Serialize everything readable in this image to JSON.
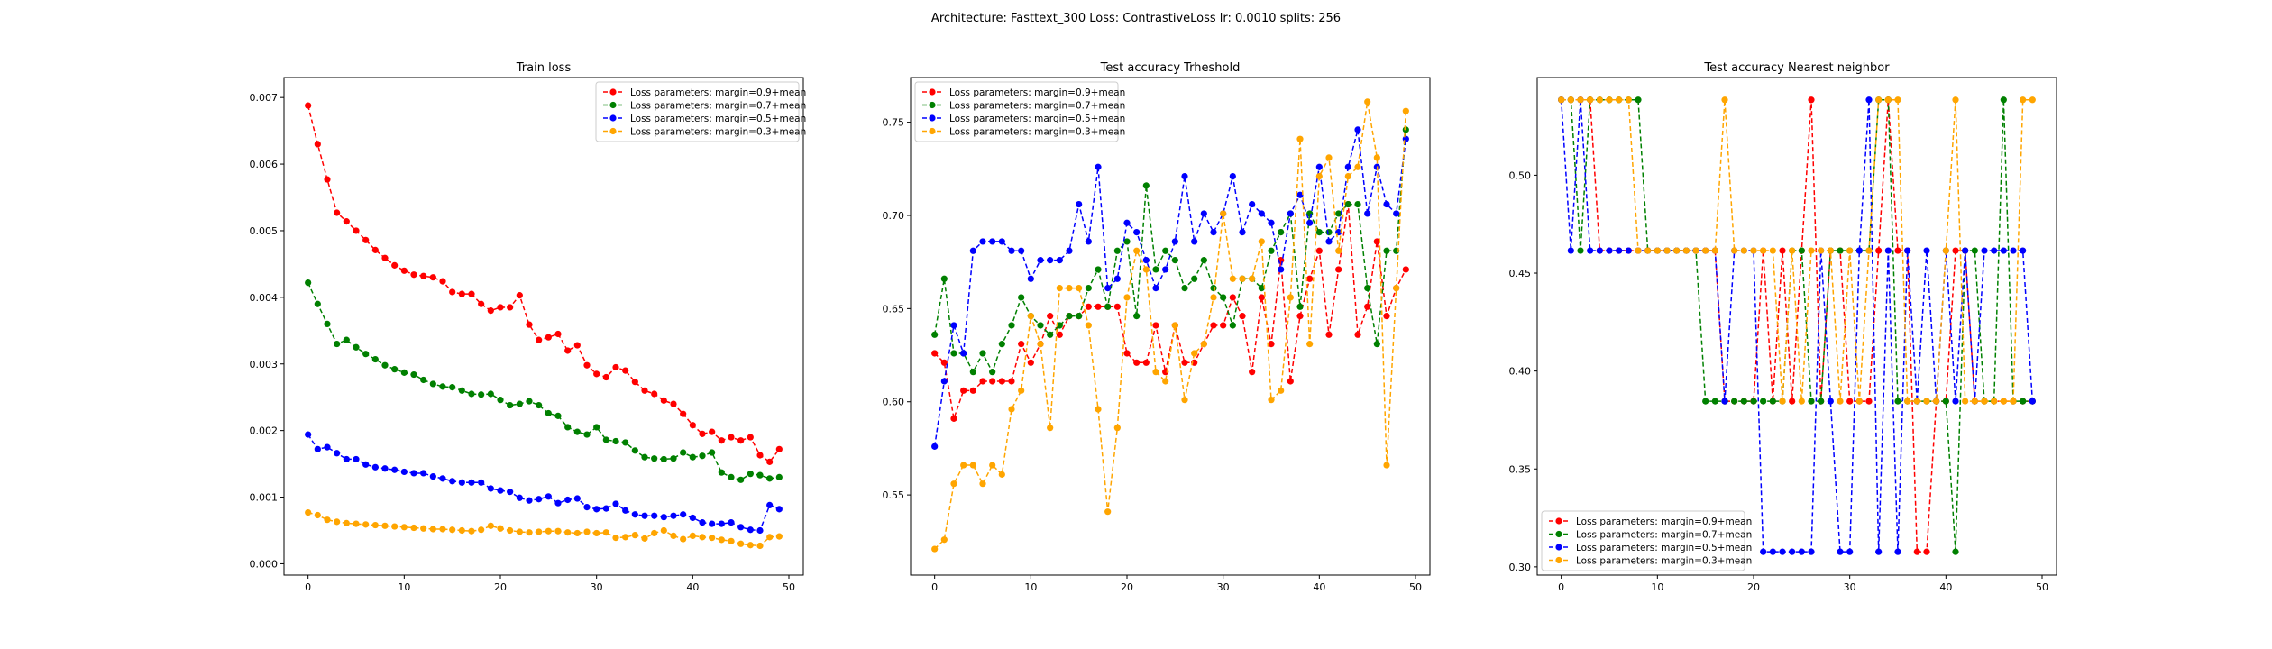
{
  "suptitle": "Architecture: Fasttext_300 Loss: ContrastiveLoss lr: 0.0010 splits: 256",
  "series_colors": [
    "#ff0000",
    "#008000",
    "#0000ff",
    "#ffa500"
  ],
  "chart_data": [
    {
      "type": "line",
      "title": "Train loss",
      "xlabel": "",
      "ylabel": "",
      "xlim": [
        -2.5,
        51.5
      ],
      "ylim": [
        -0.00017,
        0.0073
      ],
      "xticks": [
        0,
        10,
        20,
        30,
        40,
        50
      ],
      "xtick_labels": [
        "0",
        "10",
        "20",
        "30",
        "40",
        "50"
      ],
      "yticks": [
        0.0,
        0.001,
        0.002,
        0.003,
        0.004,
        0.005,
        0.006,
        0.007
      ],
      "ytick_labels": [
        "0.000",
        "0.001",
        "0.002",
        "0.003",
        "0.004",
        "0.005",
        "0.006",
        "0.007"
      ],
      "grid": false,
      "legend_position": "top-right",
      "x": [
        0,
        1,
        2,
        3,
        4,
        5,
        6,
        7,
        8,
        9,
        10,
        11,
        12,
        13,
        14,
        15,
        16,
        17,
        18,
        19,
        20,
        21,
        22,
        23,
        24,
        25,
        26,
        27,
        28,
        29,
        30,
        31,
        32,
        33,
        34,
        35,
        36,
        37,
        38,
        39,
        40,
        41,
        42,
        43,
        44,
        45,
        46,
        47,
        48,
        49
      ],
      "series": [
        {
          "name": "Loss parameters: margin=0.9+mean",
          "values": [
            0.00688,
            0.0063,
            0.00577,
            0.00527,
            0.00514,
            0.005,
            0.00486,
            0.00471,
            0.00459,
            0.00448,
            0.0044,
            0.00434,
            0.00432,
            0.0043,
            0.00424,
            0.00408,
            0.00405,
            0.00405,
            0.0039,
            0.0038,
            0.00385,
            0.00385,
            0.00403,
            0.00359,
            0.00336,
            0.0034,
            0.00345,
            0.0032,
            0.00328,
            0.00298,
            0.00285,
            0.0028,
            0.00295,
            0.0029,
            0.00273,
            0.0026,
            0.00255,
            0.00245,
            0.0024,
            0.00225,
            0.00208,
            0.00195,
            0.00198,
            0.00185,
            0.0019,
            0.00185,
            0.0019,
            0.00163,
            0.00153,
            0.00172
          ]
        },
        {
          "name": "Loss parameters: margin=0.7+mean",
          "values": [
            0.00422,
            0.0039,
            0.0036,
            0.0033,
            0.00336,
            0.00325,
            0.00315,
            0.00307,
            0.00298,
            0.00292,
            0.00287,
            0.00284,
            0.00276,
            0.0027,
            0.00266,
            0.00265,
            0.0026,
            0.00255,
            0.00254,
            0.00255,
            0.00246,
            0.00238,
            0.0024,
            0.00244,
            0.00238,
            0.00226,
            0.00222,
            0.00205,
            0.00198,
            0.00194,
            0.00205,
            0.00186,
            0.00184,
            0.00182,
            0.0017,
            0.0016,
            0.00158,
            0.00157,
            0.00158,
            0.00167,
            0.0016,
            0.00162,
            0.00167,
            0.00137,
            0.0013,
            0.00126,
            0.00135,
            0.00133,
            0.00128,
            0.0013
          ]
        },
        {
          "name": "Loss parameters: margin=0.5+mean",
          "values": [
            0.00194,
            0.00172,
            0.00175,
            0.00166,
            0.00157,
            0.00157,
            0.00149,
            0.00145,
            0.00143,
            0.00141,
            0.00138,
            0.00136,
            0.00136,
            0.00131,
            0.00128,
            0.00124,
            0.00122,
            0.00122,
            0.00122,
            0.00113,
            0.0011,
            0.00108,
            0.00099,
            0.00095,
            0.00097,
            0.00101,
            0.00091,
            0.00096,
            0.00098,
            0.00085,
            0.00082,
            0.00083,
            0.0009,
            0.0008,
            0.00074,
            0.00072,
            0.00072,
            0.0007,
            0.00072,
            0.00074,
            0.00069,
            0.00062,
            0.0006,
            0.0006,
            0.00062,
            0.00055,
            0.00051,
            0.0005,
            0.00088,
            0.00082
          ]
        },
        {
          "name": "Loss parameters: margin=0.3+mean",
          "values": [
            0.00077,
            0.00073,
            0.00066,
            0.00063,
            0.00061,
            0.0006,
            0.00059,
            0.00058,
            0.00057,
            0.00056,
            0.00055,
            0.00054,
            0.00053,
            0.00052,
            0.00052,
            0.00051,
            0.0005,
            0.00049,
            0.00051,
            0.00057,
            0.00053,
            0.0005,
            0.00048,
            0.00047,
            0.00048,
            0.00049,
            0.00049,
            0.00047,
            0.00046,
            0.00048,
            0.00046,
            0.00047,
            0.00039,
            0.0004,
            0.00043,
            0.00038,
            0.00046,
            0.0005,
            0.00042,
            0.00037,
            0.00042,
            0.0004,
            0.00039,
            0.00036,
            0.00034,
            0.0003,
            0.00028,
            0.00027,
            0.0004,
            0.00041
          ]
        }
      ]
    },
    {
      "type": "line",
      "title": "Test accuracy Trheshold",
      "xlabel": "",
      "ylabel": "",
      "xlim": [
        -2.5,
        51.5
      ],
      "ylim": [
        0.507,
        0.774
      ],
      "xticks": [
        0,
        10,
        20,
        30,
        40,
        50
      ],
      "xtick_labels": [
        "0",
        "10",
        "20",
        "30",
        "40",
        "50"
      ],
      "yticks": [
        0.55,
        0.6,
        0.65,
        0.7,
        0.75
      ],
      "ytick_labels": [
        "0.55",
        "0.60",
        "0.65",
        "0.70",
        "0.75"
      ],
      "grid": false,
      "legend_position": "top-left",
      "x": [
        0,
        1,
        2,
        3,
        4,
        5,
        6,
        7,
        8,
        9,
        10,
        11,
        12,
        13,
        14,
        15,
        16,
        17,
        18,
        19,
        20,
        21,
        22,
        23,
        24,
        25,
        26,
        27,
        28,
        29,
        30,
        31,
        32,
        33,
        34,
        35,
        36,
        37,
        38,
        39,
        40,
        41,
        42,
        43,
        44,
        45,
        46,
        47,
        48,
        49
      ],
      "series": [
        {
          "name": "Loss parameters: margin=0.9+mean",
          "values": [
            0.626,
            0.621,
            0.591,
            0.606,
            0.606,
            0.611,
            0.611,
            0.611,
            0.611,
            0.631,
            0.621,
            0.631,
            0.646,
            0.636,
            0.646,
            0.646,
            0.651,
            0.651,
            0.651,
            0.651,
            0.626,
            0.621,
            0.621,
            0.641,
            0.616,
            0.641,
            0.621,
            0.621,
            0.631,
            0.641,
            0.641,
            0.656,
            0.646,
            0.616,
            0.656,
            0.631,
            0.676,
            0.611,
            0.646,
            0.666,
            0.681,
            0.636,
            0.671,
            0.706,
            0.636,
            0.651,
            0.686,
            0.646,
            0.661,
            0.671
          ]
        },
        {
          "name": "Loss parameters: margin=0.7+mean",
          "values": [
            0.636,
            0.666,
            0.626,
            0.626,
            0.616,
            0.626,
            0.616,
            0.631,
            0.641,
            0.656,
            0.646,
            0.641,
            0.636,
            0.641,
            0.646,
            0.646,
            0.661,
            0.671,
            0.651,
            0.681,
            0.686,
            0.646,
            0.716,
            0.671,
            0.681,
            0.676,
            0.661,
            0.666,
            0.676,
            0.661,
            0.656,
            0.641,
            0.666,
            0.666,
            0.661,
            0.681,
            0.691,
            0.701,
            0.651,
            0.701,
            0.691,
            0.691,
            0.701,
            0.706,
            0.706,
            0.661,
            0.631,
            0.681,
            0.681,
            0.746
          ]
        },
        {
          "name": "Loss parameters: margin=0.5+mean",
          "values": [
            0.576,
            0.611,
            0.641,
            0.626,
            0.681,
            0.686,
            0.686,
            0.686,
            0.681,
            0.681,
            0.666,
            0.676,
            0.676,
            0.676,
            0.681,
            0.706,
            0.686,
            0.726,
            0.661,
            0.666,
            0.696,
            0.691,
            0.676,
            0.661,
            0.671,
            0.686,
            0.721,
            0.686,
            0.701,
            0.691,
            0.701,
            0.721,
            0.691,
            0.706,
            0.701,
            0.696,
            0.671,
            0.701,
            0.711,
            0.696,
            0.726,
            0.686,
            0.691,
            0.726,
            0.746,
            0.701,
            0.726,
            0.706,
            0.701,
            0.741
          ]
        },
        {
          "name": "Loss parameters: margin=0.3+mean",
          "values": [
            0.521,
            0.526,
            0.556,
            0.566,
            0.566,
            0.556,
            0.566,
            0.561,
            0.596,
            0.606,
            0.646,
            0.631,
            0.586,
            0.661,
            0.661,
            0.661,
            0.641,
            0.596,
            0.541,
            0.586,
            0.656,
            0.681,
            0.671,
            0.616,
            0.611,
            0.641,
            0.601,
            0.626,
            0.631,
            0.656,
            0.701,
            0.666,
            0.666,
            0.666,
            0.686,
            0.601,
            0.606,
            0.656,
            0.741,
            0.631,
            0.721,
            0.731,
            0.681,
            0.721,
            0.726,
            0.761,
            0.731,
            0.566,
            0.661,
            0.756
          ]
        }
      ]
    },
    {
      "type": "line",
      "title": "Test accuracy Nearest neighbor",
      "xlabel": "",
      "ylabel": "",
      "xlim": [
        -2.5,
        51.5
      ],
      "ylim": [
        0.2958,
        0.5499
      ],
      "xticks": [
        0,
        10,
        20,
        30,
        40,
        50
      ],
      "xtick_labels": [
        "0",
        "10",
        "20",
        "30",
        "40",
        "50"
      ],
      "yticks": [
        0.3,
        0.35,
        0.4,
        0.45,
        0.5
      ],
      "ytick_labels": [
        "0.30",
        "0.35",
        "0.40",
        "0.45",
        "0.50"
      ],
      "grid": false,
      "legend_position": "bottom-left",
      "x": [
        0,
        1,
        2,
        3,
        4,
        5,
        6,
        7,
        8,
        9,
        10,
        11,
        12,
        13,
        14,
        15,
        16,
        17,
        18,
        19,
        20,
        21,
        22,
        23,
        24,
        25,
        26,
        27,
        28,
        29,
        30,
        31,
        32,
        33,
        34,
        35,
        36,
        37,
        38,
        39,
        40,
        41,
        42,
        43,
        44,
        45,
        46,
        47,
        48,
        49
      ],
      "series": [
        {
          "name": "Loss parameters: margin=0.9+mean",
          "values": [
            0.5385,
            0.5385,
            0.5385,
            0.5385,
            0.4615,
            0.4615,
            0.4615,
            0.4615,
            0.4615,
            0.4615,
            0.4615,
            0.4615,
            0.4615,
            0.4615,
            0.4615,
            0.4615,
            0.4615,
            0.3846,
            0.3846,
            0.3846,
            0.3846,
            0.4615,
            0.3846,
            0.4615,
            0.3846,
            0.4615,
            0.5385,
            0.3846,
            0.4615,
            0.4615,
            0.3846,
            0.3846,
            0.3846,
            0.4615,
            0.5385,
            0.4615,
            0.4615,
            0.3077,
            0.3077,
            0.3846,
            0.3846,
            0.4615,
            0.4615,
            0.3846,
            0.3846,
            0.3846,
            0.3846,
            0.3846,
            0.3846,
            0.3846
          ]
        },
        {
          "name": "Loss parameters: margin=0.7+mean",
          "values": [
            0.5385,
            0.5385,
            0.4615,
            0.5385,
            0.5385,
            0.5385,
            0.5385,
            0.5385,
            0.5385,
            0.4615,
            0.4615,
            0.4615,
            0.4615,
            0.4615,
            0.4615,
            0.3846,
            0.3846,
            0.3846,
            0.3846,
            0.3846,
            0.3846,
            0.3846,
            0.3846,
            0.3846,
            0.4615,
            0.4615,
            0.3846,
            0.3846,
            0.4615,
            0.4615,
            0.4615,
            0.4615,
            0.4615,
            0.5385,
            0.5385,
            0.3846,
            0.3846,
            0.3846,
            0.3846,
            0.3846,
            0.3846,
            0.3077,
            0.4615,
            0.4615,
            0.3846,
            0.3846,
            0.5385,
            0.3846,
            0.3846,
            0.3846
          ]
        },
        {
          "name": "Loss parameters: margin=0.5+mean",
          "values": [
            0.5385,
            0.4615,
            0.5385,
            0.4615,
            0.4615,
            0.4615,
            0.4615,
            0.4615,
            0.4615,
            0.4615,
            0.4615,
            0.4615,
            0.4615,
            0.4615,
            0.4615,
            0.4615,
            0.4615,
            0.3846,
            0.4615,
            0.4615,
            0.4615,
            0.3077,
            0.3077,
            0.3077,
            0.3077,
            0.3077,
            0.3077,
            0.4615,
            0.3846,
            0.3077,
            0.3077,
            0.4615,
            0.5385,
            0.3077,
            0.4615,
            0.3077,
            0.4615,
            0.3846,
            0.4615,
            0.3846,
            0.4615,
            0.3846,
            0.4615,
            0.3846,
            0.4615,
            0.4615,
            0.4615,
            0.4615,
            0.4615,
            0.3846
          ]
        },
        {
          "name": "Loss parameters: margin=0.3+mean",
          "values": [
            0.5385,
            0.5385,
            0.5385,
            0.5385,
            0.5385,
            0.5385,
            0.5385,
            0.5385,
            0.4615,
            0.4615,
            0.4615,
            0.4615,
            0.4615,
            0.4615,
            0.4615,
            0.4615,
            0.4615,
            0.5385,
            0.4615,
            0.4615,
            0.4615,
            0.4615,
            0.4615,
            0.3846,
            0.4615,
            0.3846,
            0.4615,
            0.4615,
            0.4615,
            0.3846,
            0.4615,
            0.3846,
            0.4615,
            0.5385,
            0.5385,
            0.5385,
            0.3846,
            0.3846,
            0.3846,
            0.3846,
            0.4615,
            0.5385,
            0.3846,
            0.3846,
            0.3846,
            0.3846,
            0.3846,
            0.3846,
            0.5385,
            0.5385
          ]
        }
      ]
    }
  ]
}
